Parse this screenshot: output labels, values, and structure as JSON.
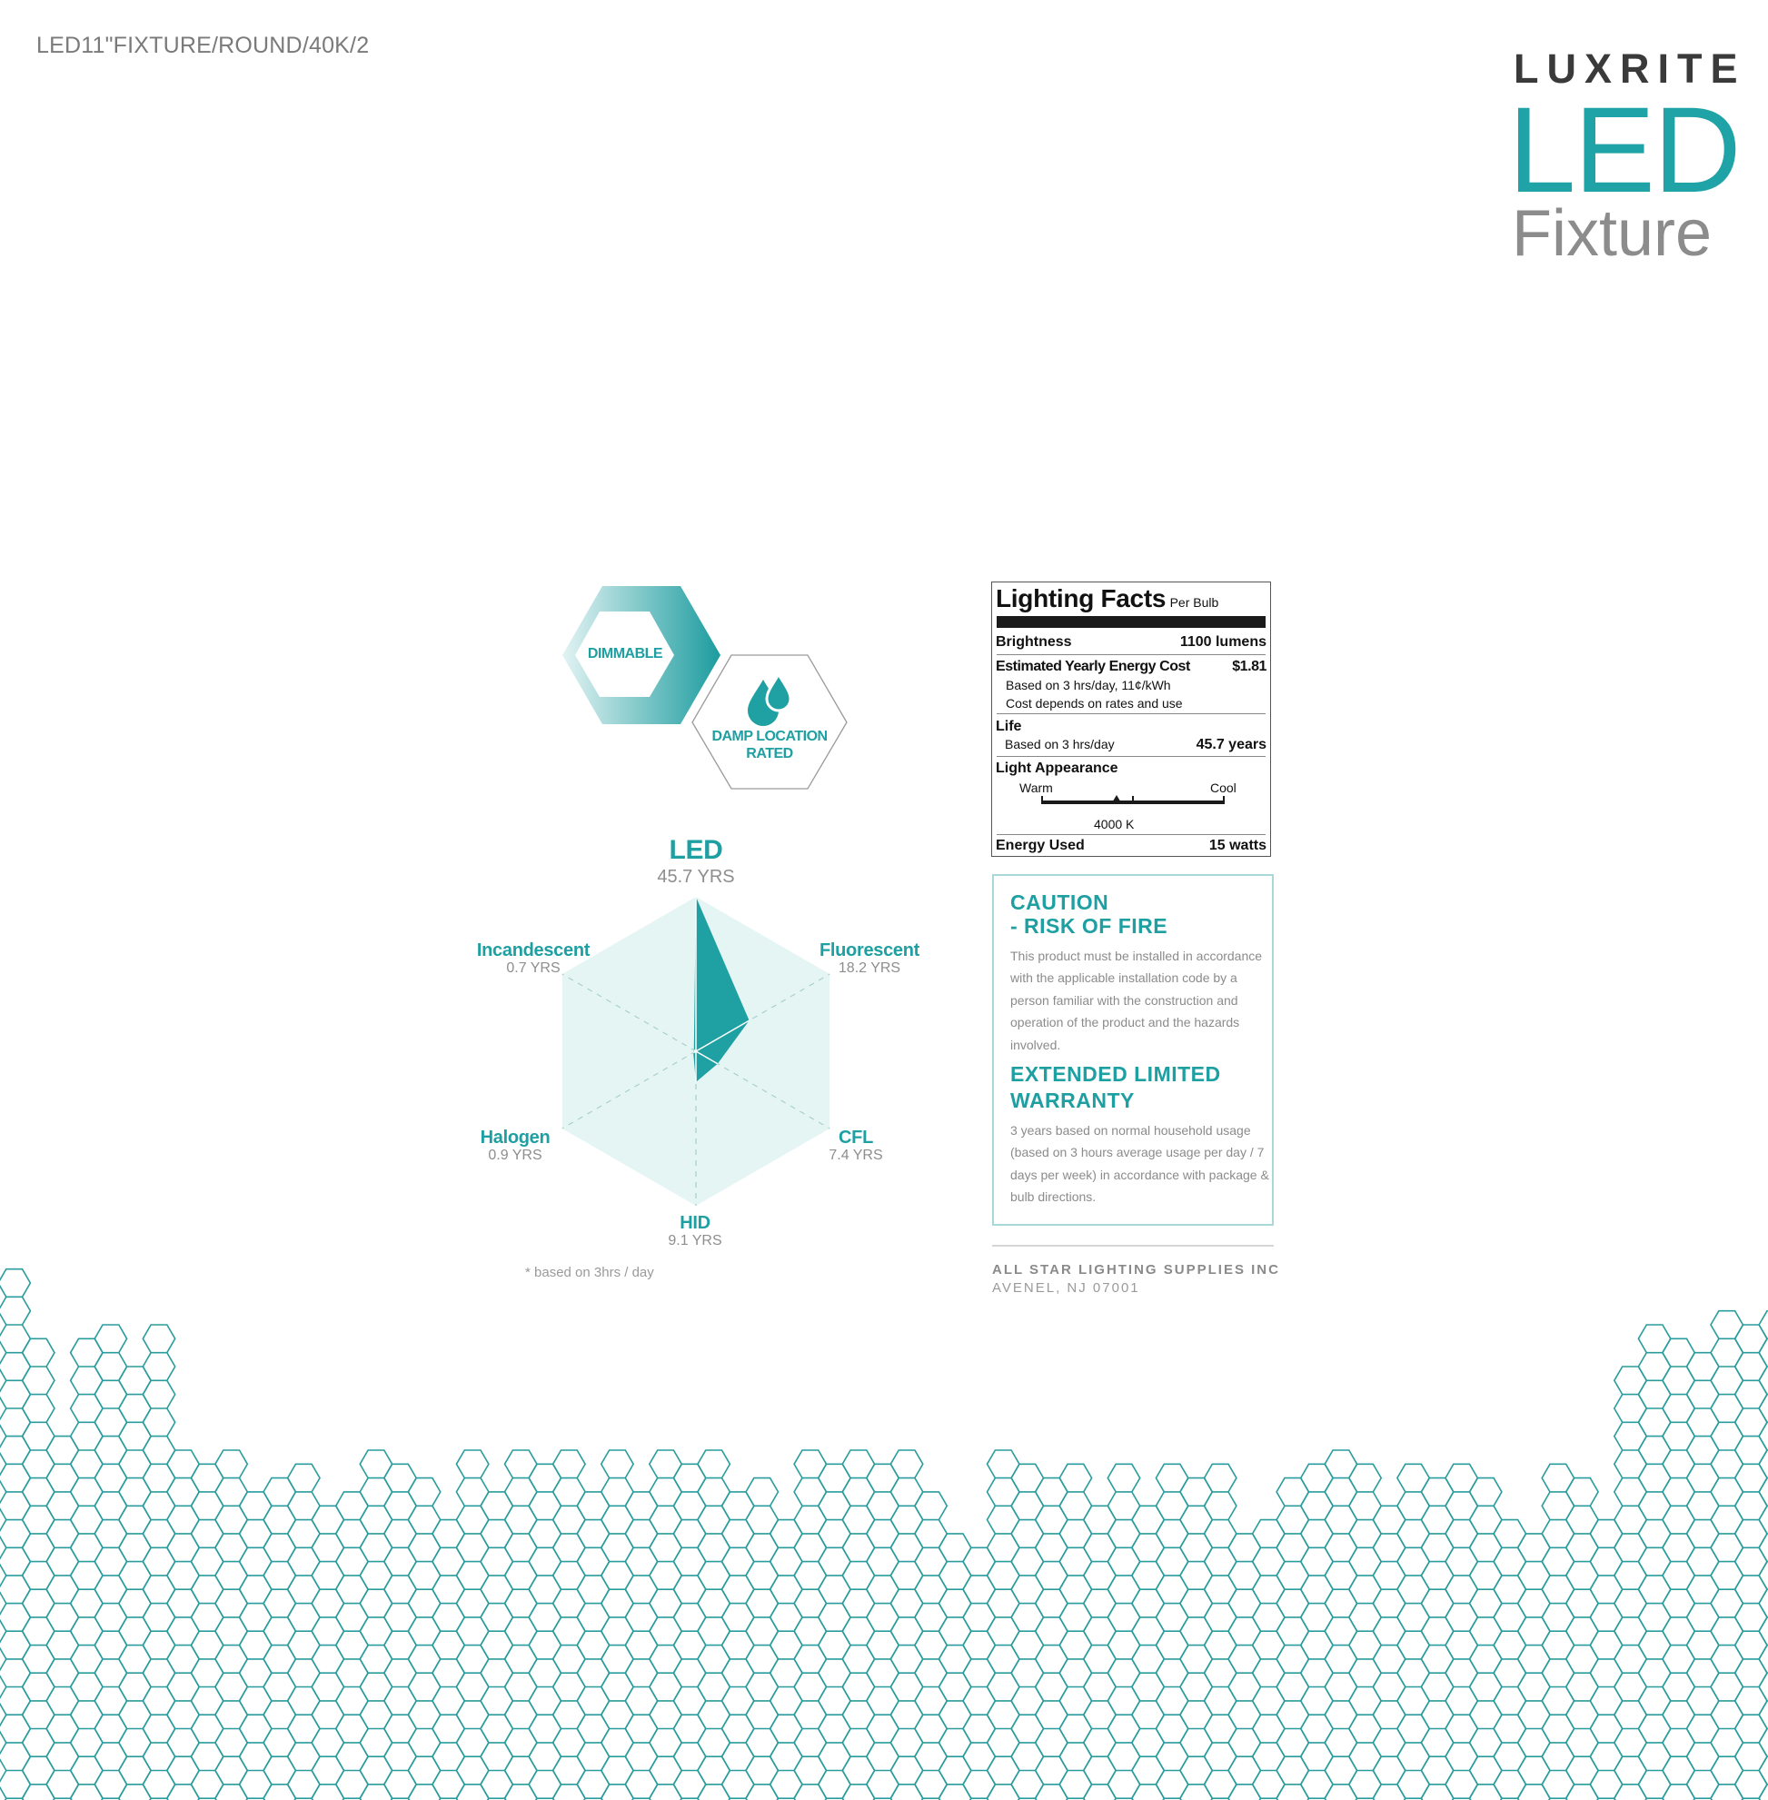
{
  "header": {
    "product_code": "LED11\"FIXTURE/ROUND/40K/2"
  },
  "logo": {
    "brand": "LUXRITE",
    "line1": "LED",
    "line2": "Fixture"
  },
  "badges": {
    "dimmable": "DIMMABLE",
    "damp_line1": "DAMP LOCATION",
    "damp_line2": "RATED"
  },
  "colors": {
    "accent": "#1fa3a6",
    "light_fill": "#e5f5f4",
    "text_gray": "#8b8b8b"
  },
  "chart_data": {
    "type": "radar",
    "title": "",
    "max": 45.7,
    "axes": [
      {
        "name": "LED",
        "value": 45.7,
        "value_label": "45.7 YRS"
      },
      {
        "name": "Fluorescent",
        "value": 18.2,
        "value_label": "18.2 YRS"
      },
      {
        "name": "CFL",
        "value": 7.4,
        "value_label": "7.4 YRS"
      },
      {
        "name": "HID",
        "value": 9.1,
        "value_label": "9.1 YRS"
      },
      {
        "name": "Halogen",
        "value": 0.9,
        "value_label": "0.9 YRS"
      },
      {
        "name": "Incandescent",
        "value": 0.7,
        "value_label": "0.7 YRS"
      }
    ],
    "footnote": "* based on 3hrs / day",
    "grid": true
  },
  "lighting_facts": {
    "title": "Lighting Facts",
    "subtitle": "Per Bulb",
    "brightness_label": "Brightness",
    "brightness_value": "1100 lumens",
    "cost_label": "Estimated Yearly Energy Cost",
    "cost_value": "$1.81",
    "cost_note1": "Based on 3 hrs/day, 11¢/kWh",
    "cost_note2": "Cost depends on rates and use",
    "life_label": "Life",
    "life_note": "Based on 3 hrs/day",
    "life_value": "45.7 years",
    "appearance_label": "Light Appearance",
    "warm_label": "Warm",
    "cool_label": "Cool",
    "cct_value": "4000 K",
    "cct_scale_position": 0.41,
    "energy_label": "Energy Used",
    "energy_value": "15 watts"
  },
  "caution": {
    "title_line1": "CAUTION",
    "title_line2": "- RISK OF FIRE",
    "body": "This product must be installed in accordance with the applicable installation code by a person familiar with the construction and operation of the product and the hazards involved."
  },
  "warranty": {
    "title_line1": "EXTENDED LIMITED",
    "title_line2": "WARRANTY",
    "body": "3 years based on normal household usage (based on 3 hours average usage per day / 7 days per week) in accordance with package & bulb directions."
  },
  "company": {
    "name": "ALL STAR LIGHTING SUPPLIES INC",
    "address": "AVENEL, NJ 07001"
  }
}
